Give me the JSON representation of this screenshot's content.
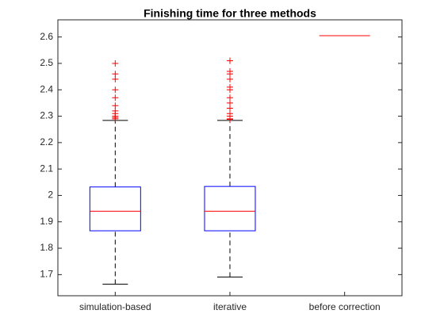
{
  "chart_data": {
    "type": "box",
    "title": "Finishing time for three methods",
    "categories": [
      "simulation-based",
      "iterative",
      "before correction"
    ],
    "boxes": [
      {
        "min": 1.664,
        "q1": 1.866,
        "median": 1.94,
        "q3": 2.032,
        "max": 2.284,
        "outliers": [
          2.5,
          2.46,
          2.44,
          2.4,
          2.37,
          2.34,
          2.32,
          2.31,
          2.3,
          2.295,
          2.29
        ]
      },
      {
        "min": 1.691,
        "q1": 1.866,
        "median": 1.94,
        "q3": 2.034,
        "max": 2.284,
        "outliers": [
          2.51,
          2.47,
          2.46,
          2.44,
          2.41,
          2.4,
          2.37,
          2.35,
          2.33,
          2.31,
          2.3,
          2.29,
          2.288
        ]
      },
      {
        "min": 2.605,
        "q1": 2.605,
        "median": 2.605,
        "q3": 2.605,
        "max": 2.605,
        "outliers": []
      }
    ],
    "box_color": "#0000ff",
    "median_color": "#ff0000",
    "whisker_color": "#000000",
    "outlier_color": "#ff0000",
    "ylim": [
      1.62,
      2.665
    ],
    "yticks": [
      1.7,
      1.8,
      1.9,
      2,
      2.1,
      2.2,
      2.3,
      2.4,
      2.5,
      2.6
    ],
    "grid": false
  }
}
